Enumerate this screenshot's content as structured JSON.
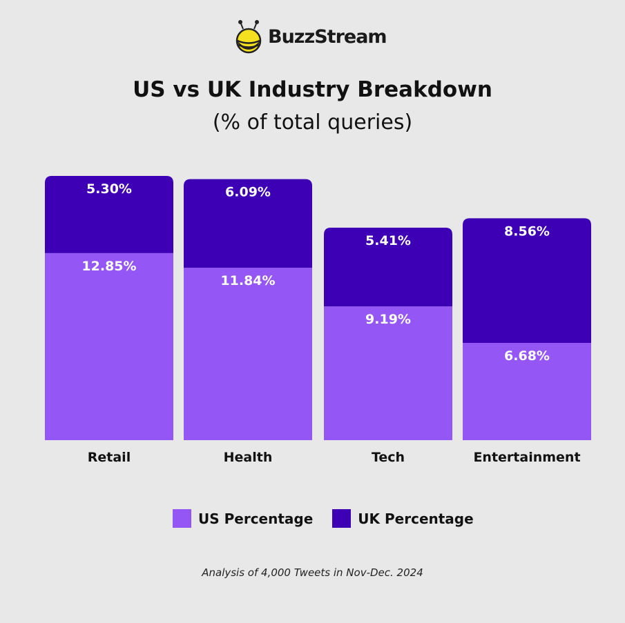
{
  "logo": {
    "text": "BuzzStream"
  },
  "chart_data": {
    "type": "bar",
    "stacked": true,
    "title": "US vs UK Industry Breakdown",
    "subtitle": "(% of total queries)",
    "categories": [
      "Retail",
      "Health",
      "Tech",
      "Entertainment"
    ],
    "series": [
      {
        "name": "US Percentage",
        "values": [
          12.85,
          11.84,
          9.19,
          6.68
        ],
        "labels": [
          "12.85%",
          "11.84%",
          "9.19%",
          "6.68%"
        ],
        "color": "#9457f5"
      },
      {
        "name": "UK Percentage",
        "values": [
          5.3,
          6.09,
          5.41,
          8.56
        ],
        "labels": [
          "5.30%",
          "6.09%",
          "5.41%",
          "8.56%"
        ],
        "color": "#3d00b4"
      }
    ],
    "grid": false,
    "legend_position": "bottom",
    "footnote": "Analysis of 4,000 Tweets in Nov-Dec. 2024"
  }
}
